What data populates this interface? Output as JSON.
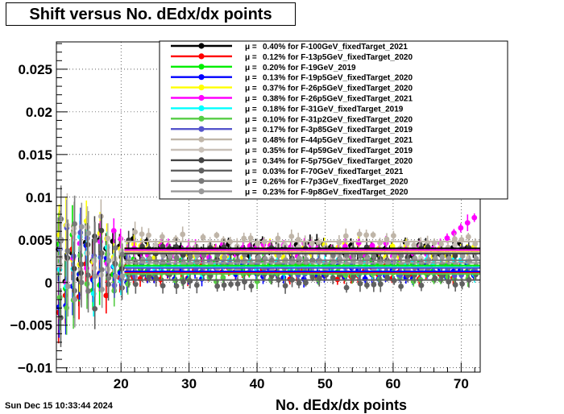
{
  "chart_data": {
    "type": "scatter",
    "title": "Shift versus No. dEdx/dx points",
    "xlabel": "No. dEdx/dx points",
    "ylabel": "",
    "xlim": [
      10.5,
      72.8
    ],
    "ylim": [
      -0.0105,
      0.0282
    ],
    "x_ticks": [
      20,
      30,
      40,
      50,
      60,
      70
    ],
    "y_ticks": [
      -0.01,
      -0.005,
      0,
      0.005,
      0.01,
      0.015,
      0.02,
      0.025
    ],
    "y_tick_labels": [
      "−0.01",
      "−0.005",
      "0",
      "0.005",
      "0.01",
      "0.015",
      "0.02",
      "0.025"
    ],
    "grid": true,
    "legend_position": "top-right",
    "mu_symbol": "μ  =",
    "series": [
      {
        "name": "0.40% for F-100GeV_fixedTarget_2021",
        "color": "#000000",
        "mean": 0.004
      },
      {
        "name": "0.12% for F-13p5GeV_fixedTarget_2020",
        "color": "#ff0000",
        "mean": 0.0012
      },
      {
        "name": "0.20% for F-19GeV_2019",
        "color": "#00ee00",
        "mean": 0.002
      },
      {
        "name": "0.13% for F-19p5GeV_fixedTarget_2020",
        "color": "#0000ff",
        "mean": 0.0013
      },
      {
        "name": "0.37% for F-26p5GeV_fixedTarget_2020",
        "color": "#ffff00",
        "mean": 0.0037
      },
      {
        "name": "0.38% for F-26p5GeV_fixedTarget_2021",
        "color": "#ff00ff",
        "mean": 0.0038
      },
      {
        "name": "0.18% for F-31GeV_fixedTarget_2019",
        "color": "#00ffff",
        "mean": 0.0018
      },
      {
        "name": "0.10% for F-31p2GeV_fixedTarget_2020",
        "color": "#55cc44",
        "mean": 0.001
      },
      {
        "name": "0.17% for F-3p85GeV_fixedTarget_2019",
        "color": "#5555cc",
        "mean": 0.0017
      },
      {
        "name": "0.48% for F-44p5GeV_fixedTarget_2021",
        "color": "#bfb5a8",
        "mean": 0.0048
      },
      {
        "name": "0.35% for F-4p59GeV_fixedTarget_2019",
        "color": "#c8c0b8",
        "mean": 0.0035
      },
      {
        "name": "0.34% for F-5p75GeV_fixedTarget_2020",
        "color": "#444444",
        "mean": 0.0034
      },
      {
        "name": "0.03% for F-70GeV_fixedTarget_2021",
        "color": "#606060",
        "mean": 0.0003
      },
      {
        "name": "0.26% for F-7p3GeV_fixedTarget_2020",
        "color": "#7a7a7a",
        "mean": 0.0026
      },
      {
        "name": "0.23% for F-9p8GeV_fixedTarget_2020",
        "color": "#999999",
        "mean": 0.0023
      }
    ]
  },
  "footer": {
    "timestamp": "Sun Dec 15 10:33:44 2024"
  }
}
